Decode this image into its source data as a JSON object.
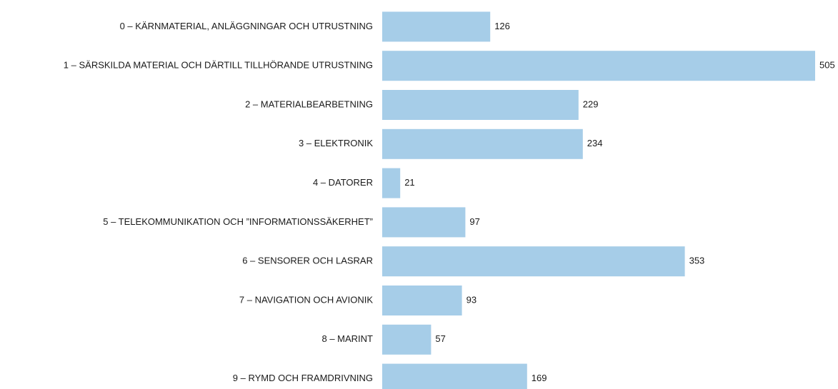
{
  "chart_data": {
    "type": "bar",
    "orientation": "horizontal",
    "categories": [
      "0 – KÄRNMATERIAL, ANLÄGGNINGAR OCH UTRUSTNING",
      "1 – SÄRSKILDA MATERIAL OCH DÄRTILL TILLHÖRANDE UTRUSTNING",
      "2 – MATERIALBEARBETNING",
      "3 – ELEKTRONIK",
      "4 – DATORER",
      "5 – TELEKOMMUNIKATION OCH ”INFORMATIONSSÄKERHET”",
      "6 – SENSORER OCH LASRAR",
      "7 – NAVIGATION OCH AVIONIK",
      "8 – MARINT",
      "9 – RYMD OCH FRAMDRIVNING"
    ],
    "values": [
      126,
      505,
      229,
      234,
      21,
      97,
      353,
      93,
      57,
      169
    ],
    "color": "#a6cde8"
  }
}
